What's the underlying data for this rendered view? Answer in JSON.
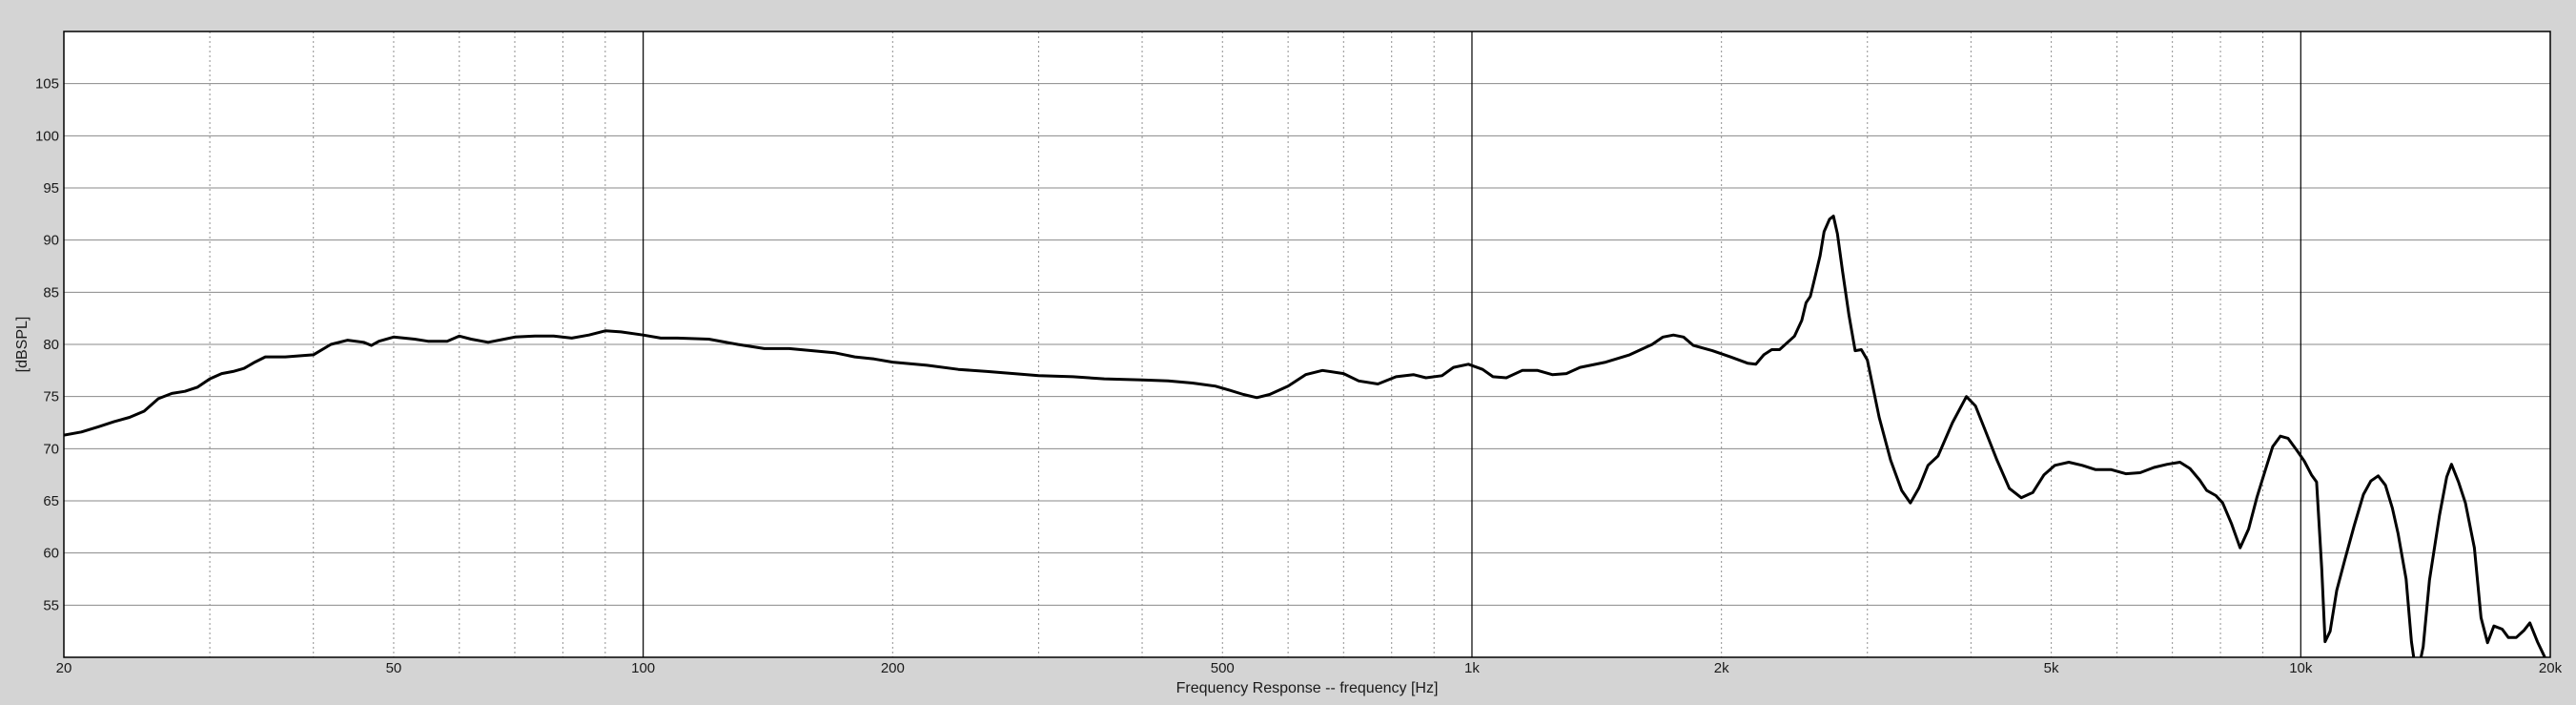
{
  "chart_data": {
    "type": "line",
    "title": "",
    "xlabel": "Frequency Response -- frequency [Hz]",
    "ylabel": "[dBSPL]",
    "x_scale": "log",
    "xlim": [
      20,
      20000
    ],
    "ylim": [
      50,
      110
    ],
    "grid": true,
    "legend": "none",
    "x_tick_values": [
      20,
      50,
      100,
      200,
      500,
      1000,
      2000,
      5000,
      10000,
      20000
    ],
    "x_tick_labels": [
      "20",
      "50",
      "100",
      "200",
      "500",
      "1k",
      "2k",
      "5k",
      "10k",
      "20k"
    ],
    "y_ticks": [
      55,
      60,
      65,
      70,
      75,
      80,
      85,
      90,
      95,
      100,
      105
    ],
    "y_tick_labels": [
      "55",
      "60",
      "65",
      "70",
      "75",
      "80",
      "85",
      "90",
      "95",
      "100",
      "105"
    ],
    "series": [
      {
        "color": "#000000",
        "points": [
          [
            20,
            71.3
          ],
          [
            21,
            71.6
          ],
          [
            22,
            72.1
          ],
          [
            23,
            72.6
          ],
          [
            24,
            73.0
          ],
          [
            25,
            73.6
          ],
          [
            26,
            74.8
          ],
          [
            27,
            75.3
          ],
          [
            28,
            75.5
          ],
          [
            29,
            75.9
          ],
          [
            30,
            76.7
          ],
          [
            31,
            77.2
          ],
          [
            32,
            77.4
          ],
          [
            33,
            77.7
          ],
          [
            34,
            78.3
          ],
          [
            35,
            78.8
          ],
          [
            37,
            78.8
          ],
          [
            40,
            79.0
          ],
          [
            42,
            80.0
          ],
          [
            44,
            80.4
          ],
          [
            46,
            80.2
          ],
          [
            47,
            79.9
          ],
          [
            48,
            80.3
          ],
          [
            50,
            80.7
          ],
          [
            53,
            80.5
          ],
          [
            55,
            80.3
          ],
          [
            58,
            80.3
          ],
          [
            60,
            80.8
          ],
          [
            62,
            80.5
          ],
          [
            65,
            80.2
          ],
          [
            68,
            80.5
          ],
          [
            70,
            80.7
          ],
          [
            74,
            80.8
          ],
          [
            78,
            80.8
          ],
          [
            82,
            80.6
          ],
          [
            86,
            80.9
          ],
          [
            90,
            81.3
          ],
          [
            94,
            81.2
          ],
          [
            100,
            80.9
          ],
          [
            105,
            80.6
          ],
          [
            110,
            80.6
          ],
          [
            120,
            80.5
          ],
          [
            130,
            80.0
          ],
          [
            140,
            79.6
          ],
          [
            150,
            79.6
          ],
          [
            160,
            79.4
          ],
          [
            170,
            79.2
          ],
          [
            180,
            78.8
          ],
          [
            190,
            78.6
          ],
          [
            200,
            78.3
          ],
          [
            220,
            78.0
          ],
          [
            240,
            77.6
          ],
          [
            260,
            77.4
          ],
          [
            280,
            77.2
          ],
          [
            300,
            77.0
          ],
          [
            330,
            76.9
          ],
          [
            360,
            76.7
          ],
          [
            400,
            76.6
          ],
          [
            430,
            76.5
          ],
          [
            460,
            76.3
          ],
          [
            490,
            76.0
          ],
          [
            510,
            75.6
          ],
          [
            530,
            75.2
          ],
          [
            550,
            74.9
          ],
          [
            570,
            75.2
          ],
          [
            600,
            76.0
          ],
          [
            630,
            77.1
          ],
          [
            660,
            77.5
          ],
          [
            700,
            77.2
          ],
          [
            730,
            76.5
          ],
          [
            770,
            76.2
          ],
          [
            810,
            76.9
          ],
          [
            850,
            77.1
          ],
          [
            880,
            76.8
          ],
          [
            920,
            77.0
          ],
          [
            950,
            77.8
          ],
          [
            990,
            78.1
          ],
          [
            1030,
            77.6
          ],
          [
            1060,
            76.9
          ],
          [
            1100,
            76.8
          ],
          [
            1150,
            77.5
          ],
          [
            1200,
            77.5
          ],
          [
            1250,
            77.1
          ],
          [
            1300,
            77.2
          ],
          [
            1350,
            77.8
          ],
          [
            1450,
            78.3
          ],
          [
            1550,
            79.0
          ],
          [
            1650,
            80.0
          ],
          [
            1700,
            80.7
          ],
          [
            1750,
            80.9
          ],
          [
            1800,
            80.7
          ],
          [
            1850,
            79.9
          ],
          [
            1950,
            79.4
          ],
          [
            2050,
            78.8
          ],
          [
            2150,
            78.2
          ],
          [
            2200,
            78.1
          ],
          [
            2250,
            79.0
          ],
          [
            2300,
            79.5
          ],
          [
            2350,
            79.5
          ],
          [
            2450,
            80.8
          ],
          [
            2500,
            82.3
          ],
          [
            2530,
            84.0
          ],
          [
            2560,
            84.6
          ],
          [
            2600,
            86.8
          ],
          [
            2630,
            88.5
          ],
          [
            2660,
            90.8
          ],
          [
            2700,
            92.0
          ],
          [
            2730,
            92.3
          ],
          [
            2760,
            90.6
          ],
          [
            2800,
            87.0
          ],
          [
            2850,
            82.8
          ],
          [
            2900,
            79.4
          ],
          [
            2950,
            79.5
          ],
          [
            3000,
            78.5
          ],
          [
            3100,
            73.0
          ],
          [
            3200,
            68.9
          ],
          [
            3300,
            66.0
          ],
          [
            3380,
            64.8
          ],
          [
            3460,
            66.2
          ],
          [
            3550,
            68.4
          ],
          [
            3650,
            69.3
          ],
          [
            3800,
            72.5
          ],
          [
            3950,
            75.0
          ],
          [
            4050,
            74.1
          ],
          [
            4150,
            72.0
          ],
          [
            4300,
            68.9
          ],
          [
            4450,
            66.2
          ],
          [
            4600,
            65.3
          ],
          [
            4750,
            65.8
          ],
          [
            4900,
            67.5
          ],
          [
            5050,
            68.4
          ],
          [
            5250,
            68.7
          ],
          [
            5450,
            68.4
          ],
          [
            5650,
            68.0
          ],
          [
            5900,
            68.0
          ],
          [
            6150,
            67.6
          ],
          [
            6400,
            67.7
          ],
          [
            6650,
            68.2
          ],
          [
            6900,
            68.5
          ],
          [
            7150,
            68.7
          ],
          [
            7350,
            68.1
          ],
          [
            7550,
            67.0
          ],
          [
            7700,
            66.0
          ],
          [
            7900,
            65.5
          ],
          [
            8050,
            64.8
          ],
          [
            8250,
            62.8
          ],
          [
            8450,
            60.5
          ],
          [
            8650,
            62.3
          ],
          [
            8850,
            65.3
          ],
          [
            9050,
            67.8
          ],
          [
            9250,
            70.2
          ],
          [
            9450,
            71.2
          ],
          [
            9650,
            71.0
          ],
          [
            9900,
            69.8
          ],
          [
            10100,
            68.8
          ],
          [
            10300,
            67.5
          ],
          [
            10450,
            66.8
          ],
          [
            10600,
            58.5
          ],
          [
            10700,
            51.5
          ],
          [
            10850,
            52.5
          ],
          [
            11050,
            56.4
          ],
          [
            11300,
            59.3
          ],
          [
            11600,
            62.6
          ],
          [
            11900,
            65.6
          ],
          [
            12150,
            66.9
          ],
          [
            12400,
            67.4
          ],
          [
            12650,
            66.5
          ],
          [
            12900,
            64.3
          ],
          [
            13100,
            61.9
          ],
          [
            13400,
            57.5
          ],
          [
            13600,
            51.5
          ],
          [
            13800,
            48.0
          ],
          [
            14050,
            51.0
          ],
          [
            14300,
            57.4
          ],
          [
            14700,
            63.6
          ],
          [
            15000,
            67.3
          ],
          [
            15200,
            68.5
          ],
          [
            15500,
            66.8
          ],
          [
            15800,
            64.8
          ],
          [
            16200,
            60.5
          ],
          [
            16500,
            53.8
          ],
          [
            16800,
            51.4
          ],
          [
            17100,
            53.0
          ],
          [
            17500,
            52.7
          ],
          [
            17800,
            51.9
          ],
          [
            18200,
            51.9
          ],
          [
            18600,
            52.6
          ],
          [
            18900,
            53.3
          ],
          [
            19300,
            51.5
          ],
          [
            19700,
            50.0
          ]
        ]
      }
    ]
  }
}
